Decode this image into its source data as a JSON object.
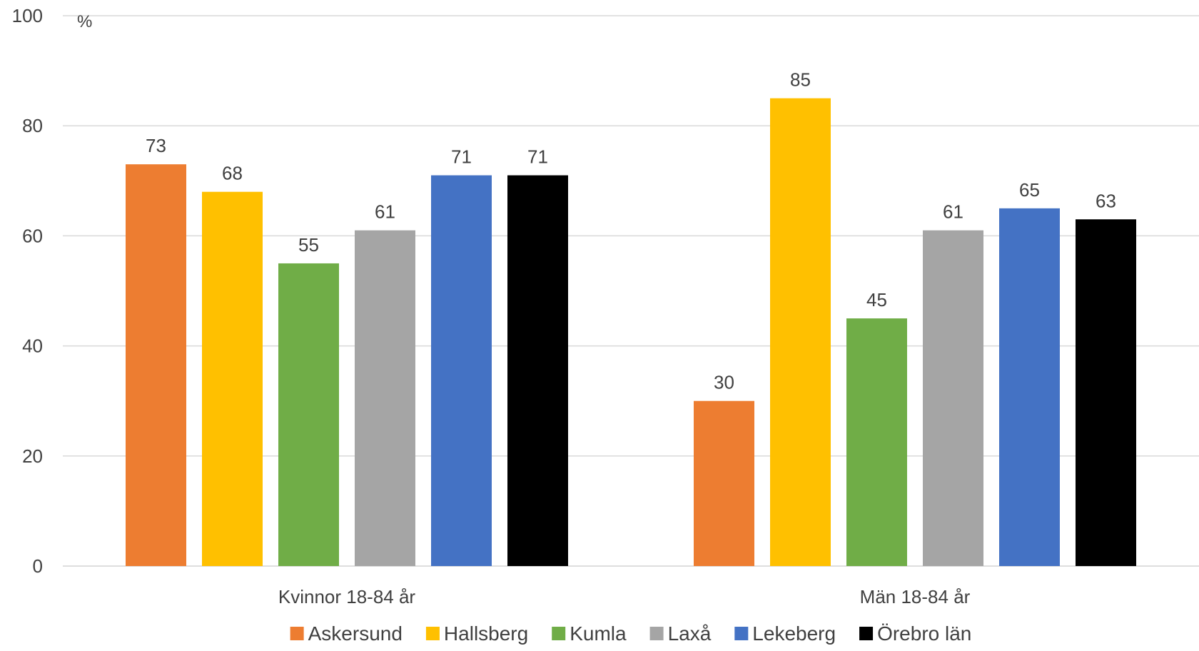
{
  "chart_data": {
    "type": "bar",
    "unit": "%",
    "ylim": [
      0,
      100
    ],
    "yticks": [
      0,
      20,
      40,
      60,
      80,
      100
    ],
    "grid": true,
    "legend_position": "bottom",
    "categories": [
      "Kvinnor 18-84 år",
      "Män 18-84 år"
    ],
    "series": [
      {
        "name": "Askersund",
        "color": "#ED7D31",
        "values": [
          73,
          30
        ]
      },
      {
        "name": "Hallsberg",
        "color": "#FFC000",
        "values": [
          68,
          85
        ]
      },
      {
        "name": "Kumla",
        "color": "#70AD47",
        "values": [
          55,
          45
        ]
      },
      {
        "name": "Laxå",
        "color": "#A5A5A5",
        "values": [
          61,
          61
        ]
      },
      {
        "name": "Lekeberg",
        "color": "#4472C4",
        "values": [
          71,
          65
        ]
      },
      {
        "name": "Örebro län",
        "color": "#000000",
        "values": [
          71,
          63
        ]
      }
    ]
  }
}
